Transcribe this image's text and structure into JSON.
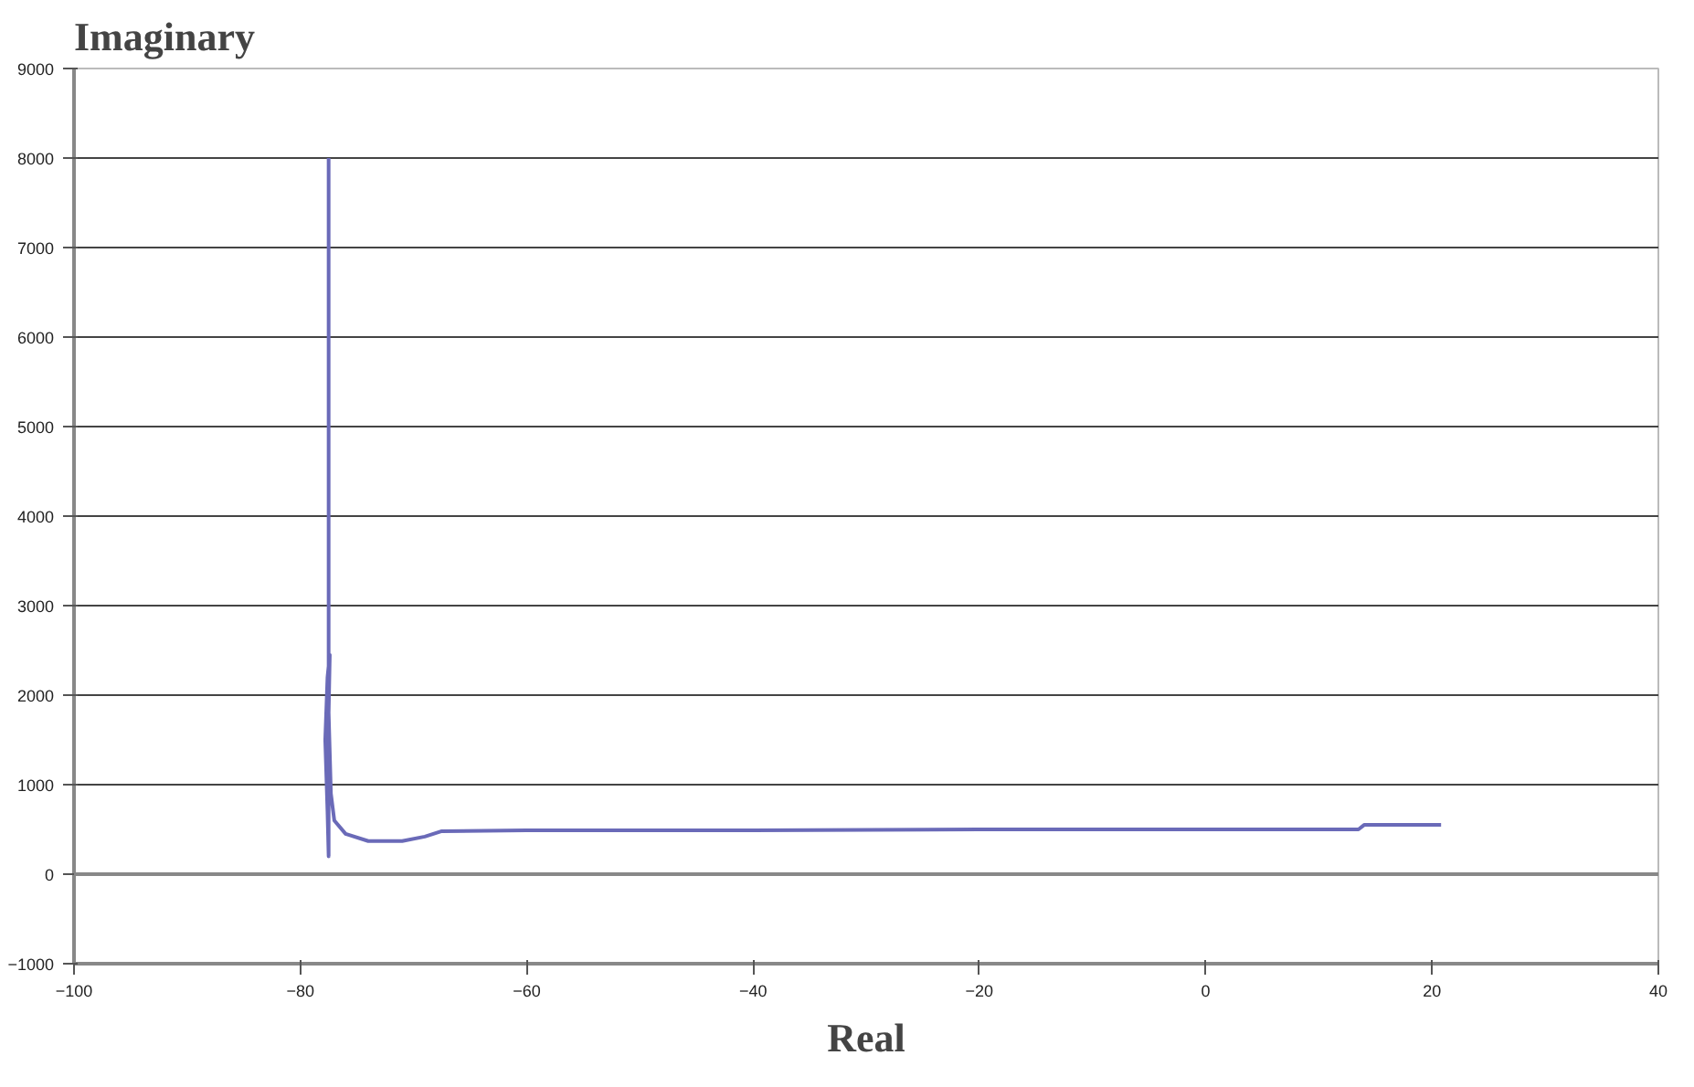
{
  "chart_data": {
    "type": "line",
    "xlabel": "Real",
    "ylabel": "Imaginary",
    "series": [
      {
        "color": "#6a6ab8",
        "x": [
          -77.5,
          -77.5,
          -77.6,
          -77.8,
          -77.6,
          -77.4,
          -77.5,
          -77.3,
          -77.0,
          -76.0,
          -74.0,
          -71.0,
          -69.0,
          -67.5,
          -60.0,
          -40.0,
          -20.0,
          0.0,
          13.5,
          14.0,
          20.8
        ],
        "values": [
          8000,
          200,
          700,
          1500,
          2200,
          2450,
          1800,
          900,
          600,
          450,
          370,
          370,
          420,
          480,
          490,
          490,
          500,
          500,
          500,
          550,
          550
        ]
      }
    ],
    "xlim": [
      -100,
      40
    ],
    "xticks": [
      -100,
      -80,
      -60,
      -40,
      -20,
      0,
      20,
      40
    ],
    "ylim": [
      -1000,
      9000
    ],
    "yticks": [
      -1000,
      0,
      1000,
      2000,
      3000,
      4000,
      5000,
      6000,
      7000,
      8000,
      9000
    ],
    "grid": "y",
    "line_style": "solid"
  }
}
